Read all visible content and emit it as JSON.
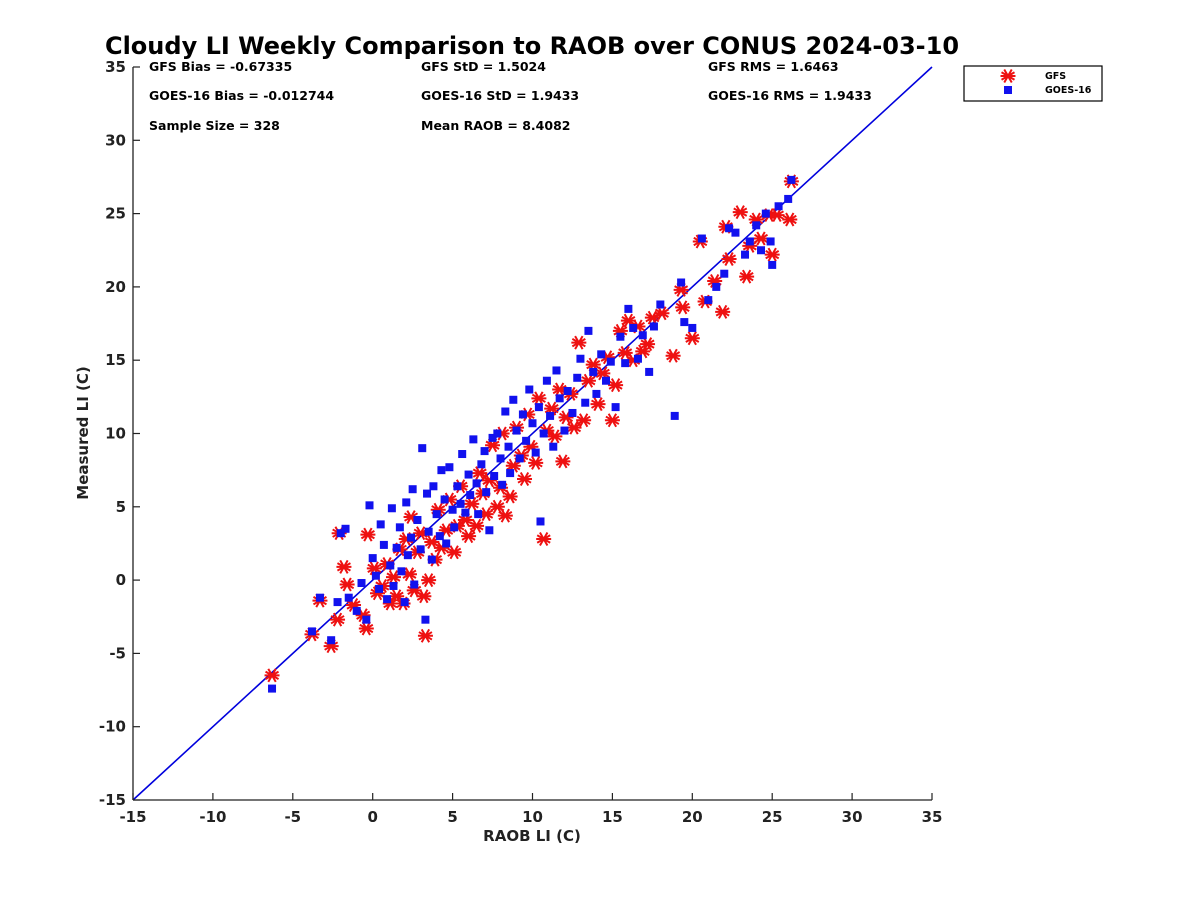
{
  "chart_data": {
    "type": "scatter",
    "title": "Cloudy LI Weekly Comparison to RAOB over CONUS 2024-03-10",
    "xlabel": "RAOB LI (C)",
    "ylabel": "Measured LI (C)",
    "xlim": [
      -15,
      35
    ],
    "ylim": [
      -15,
      35
    ],
    "xticks": [
      -15,
      -10,
      -5,
      0,
      5,
      10,
      15,
      20,
      25,
      30,
      35
    ],
    "yticks": [
      -15,
      -10,
      -5,
      0,
      5,
      10,
      15,
      20,
      25,
      30,
      35
    ],
    "grid": false,
    "legend_position": "top-right, outside",
    "reference_line": {
      "from": [
        -15,
        -15
      ],
      "to": [
        35,
        35
      ],
      "color": "#0000dd"
    },
    "stats": [
      [
        "GFS Bias = -0.67335",
        "GFS StD = 1.5024",
        "GFS RMS = 1.6463"
      ],
      [
        "GOES-16 Bias = -0.012744",
        "GOES-16 StD = 1.9433",
        "GOES-16 RMS = 1.9433"
      ],
      [
        "Sample Size = 328",
        "Mean RAOB = 8.4082",
        ""
      ]
    ],
    "series": [
      {
        "name": "GFS",
        "marker": "asterisk",
        "color": "#ee1111",
        "points": [
          [
            -6.3,
            -6.5
          ],
          [
            -3.8,
            -3.7
          ],
          [
            -3.3,
            -1.4
          ],
          [
            -2.6,
            -4.5
          ],
          [
            -2.2,
            -2.7
          ],
          [
            -2.1,
            3.2
          ],
          [
            -1.8,
            0.9
          ],
          [
            -1.6,
            -0.3
          ],
          [
            -1.2,
            -1.7
          ],
          [
            -0.6,
            -2.4
          ],
          [
            -0.4,
            -3.3
          ],
          [
            -0.3,
            3.1
          ],
          [
            0.1,
            0.8
          ],
          [
            0.3,
            -0.9
          ],
          [
            0.6,
            -0.4
          ],
          [
            0.9,
            1.1
          ],
          [
            1.1,
            -1.6
          ],
          [
            1.3,
            0.2
          ],
          [
            1.5,
            -1.1
          ],
          [
            1.7,
            2.1
          ],
          [
            1.9,
            -1.6
          ],
          [
            2.1,
            2.8
          ],
          [
            2.3,
            0.4
          ],
          [
            2.4,
            4.3
          ],
          [
            2.6,
            -0.7
          ],
          [
            2.8,
            1.9
          ],
          [
            3.0,
            3.2
          ],
          [
            3.2,
            -1.1
          ],
          [
            3.3,
            -3.8
          ],
          [
            3.5,
            0.0
          ],
          [
            3.7,
            2.6
          ],
          [
            3.9,
            1.4
          ],
          [
            4.1,
            4.8
          ],
          [
            4.3,
            2.2
          ],
          [
            4.6,
            3.4
          ],
          [
            4.8,
            5.5
          ],
          [
            5.1,
            1.9
          ],
          [
            5.3,
            3.7
          ],
          [
            5.5,
            6.4
          ],
          [
            5.8,
            4.1
          ],
          [
            6.0,
            3.0
          ],
          [
            6.2,
            5.2
          ],
          [
            6.5,
            3.7
          ],
          [
            6.7,
            7.3
          ],
          [
            6.9,
            5.9
          ],
          [
            7.1,
            4.5
          ],
          [
            7.3,
            6.8
          ],
          [
            7.5,
            9.2
          ],
          [
            7.8,
            5.0
          ],
          [
            8.0,
            6.3
          ],
          [
            8.1,
            10.0
          ],
          [
            8.3,
            4.4
          ],
          [
            8.6,
            5.7
          ],
          [
            8.8,
            7.8
          ],
          [
            9.0,
            10.4
          ],
          [
            9.3,
            8.5
          ],
          [
            9.5,
            6.9
          ],
          [
            9.7,
            11.3
          ],
          [
            9.9,
            9.1
          ],
          [
            10.2,
            8.0
          ],
          [
            10.4,
            12.4
          ],
          [
            10.7,
            2.8
          ],
          [
            10.9,
            10.2
          ],
          [
            11.2,
            11.7
          ],
          [
            11.4,
            9.8
          ],
          [
            11.7,
            13.0
          ],
          [
            11.9,
            8.1
          ],
          [
            12.1,
            11.1
          ],
          [
            12.4,
            12.7
          ],
          [
            12.6,
            10.4
          ],
          [
            12.9,
            16.2
          ],
          [
            13.2,
            10.9
          ],
          [
            13.5,
            13.6
          ],
          [
            13.8,
            14.7
          ],
          [
            14.1,
            12.0
          ],
          [
            14.4,
            14.1
          ],
          [
            14.7,
            15.2
          ],
          [
            15.0,
            10.9
          ],
          [
            15.2,
            13.3
          ],
          [
            15.5,
            17.0
          ],
          [
            15.8,
            15.5
          ],
          [
            16.0,
            17.7
          ],
          [
            16.3,
            15.0
          ],
          [
            16.6,
            17.3
          ],
          [
            16.9,
            15.6
          ],
          [
            17.2,
            16.1
          ],
          [
            17.5,
            17.9
          ],
          [
            18.1,
            18.2
          ],
          [
            18.8,
            15.3
          ],
          [
            19.3,
            19.8
          ],
          [
            19.4,
            18.6
          ],
          [
            20.0,
            16.5
          ],
          [
            20.5,
            23.1
          ],
          [
            20.8,
            19.0
          ],
          [
            21.4,
            20.4
          ],
          [
            21.9,
            18.3
          ],
          [
            22.1,
            24.1
          ],
          [
            22.3,
            21.9
          ],
          [
            23.0,
            25.1
          ],
          [
            23.4,
            20.7
          ],
          [
            23.6,
            22.8
          ],
          [
            24.0,
            24.6
          ],
          [
            24.3,
            23.3
          ],
          [
            24.8,
            24.9
          ],
          [
            25.0,
            22.2
          ],
          [
            25.3,
            24.9
          ],
          [
            26.1,
            24.6
          ],
          [
            26.2,
            27.2
          ]
        ]
      },
      {
        "name": "GOES-16",
        "marker": "square",
        "color": "#1111ee",
        "points": [
          [
            -6.3,
            -7.4
          ],
          [
            -3.8,
            -3.5
          ],
          [
            -3.3,
            -1.2
          ],
          [
            -2.6,
            -4.1
          ],
          [
            -2.2,
            -1.5
          ],
          [
            -2.0,
            3.2
          ],
          [
            -1.7,
            3.5
          ],
          [
            -1.5,
            -1.2
          ],
          [
            -1.0,
            -2.1
          ],
          [
            -0.7,
            -0.2
          ],
          [
            -0.4,
            -2.7
          ],
          [
            -0.2,
            5.1
          ],
          [
            0.0,
            1.5
          ],
          [
            0.2,
            0.3
          ],
          [
            0.4,
            -0.6
          ],
          [
            0.5,
            3.8
          ],
          [
            0.7,
            2.4
          ],
          [
            0.9,
            -1.3
          ],
          [
            1.1,
            1.0
          ],
          [
            1.2,
            4.9
          ],
          [
            1.3,
            -0.4
          ],
          [
            1.5,
            2.2
          ],
          [
            1.7,
            3.6
          ],
          [
            1.8,
            0.6
          ],
          [
            2.0,
            -1.5
          ],
          [
            2.1,
            5.3
          ],
          [
            2.2,
            1.7
          ],
          [
            2.4,
            2.9
          ],
          [
            2.5,
            6.2
          ],
          [
            2.6,
            -0.3
          ],
          [
            2.8,
            4.1
          ],
          [
            3.0,
            2.1
          ],
          [
            3.1,
            9.0
          ],
          [
            3.3,
            -2.7
          ],
          [
            3.4,
            5.9
          ],
          [
            3.5,
            3.3
          ],
          [
            3.7,
            1.4
          ],
          [
            3.8,
            6.4
          ],
          [
            4.0,
            4.5
          ],
          [
            4.2,
            3.0
          ],
          [
            4.3,
            7.5
          ],
          [
            4.5,
            5.5
          ],
          [
            4.6,
            2.5
          ],
          [
            4.8,
            7.7
          ],
          [
            5.0,
            4.8
          ],
          [
            5.1,
            3.6
          ],
          [
            5.3,
            6.4
          ],
          [
            5.5,
            5.2
          ],
          [
            5.6,
            8.6
          ],
          [
            5.8,
            4.6
          ],
          [
            6.0,
            7.2
          ],
          [
            6.1,
            5.8
          ],
          [
            6.3,
            9.6
          ],
          [
            6.5,
            6.6
          ],
          [
            6.6,
            4.5
          ],
          [
            6.8,
            7.9
          ],
          [
            7.0,
            8.8
          ],
          [
            7.1,
            6.0
          ],
          [
            7.3,
            3.4
          ],
          [
            7.5,
            9.7
          ],
          [
            7.6,
            7.1
          ],
          [
            7.8,
            10.0
          ],
          [
            8.0,
            8.3
          ],
          [
            8.1,
            6.5
          ],
          [
            8.3,
            11.5
          ],
          [
            8.5,
            9.1
          ],
          [
            8.6,
            7.3
          ],
          [
            8.8,
            12.3
          ],
          [
            9.0,
            10.2
          ],
          [
            9.2,
            8.3
          ],
          [
            9.4,
            11.3
          ],
          [
            9.6,
            9.5
          ],
          [
            9.8,
            13.0
          ],
          [
            10.0,
            10.7
          ],
          [
            10.2,
            8.7
          ],
          [
            10.4,
            11.8
          ],
          [
            10.5,
            4.0
          ],
          [
            10.7,
            10.0
          ],
          [
            10.9,
            13.6
          ],
          [
            11.1,
            11.2
          ],
          [
            11.3,
            9.1
          ],
          [
            11.5,
            14.3
          ],
          [
            11.7,
            12.4
          ],
          [
            12.0,
            10.2
          ],
          [
            12.2,
            12.9
          ],
          [
            12.5,
            11.4
          ],
          [
            12.8,
            13.8
          ],
          [
            13.0,
            15.1
          ],
          [
            13.3,
            12.1
          ],
          [
            13.5,
            17.0
          ],
          [
            13.8,
            14.2
          ],
          [
            14.0,
            12.7
          ],
          [
            14.3,
            15.4
          ],
          [
            14.6,
            13.6
          ],
          [
            14.9,
            14.9
          ],
          [
            15.2,
            11.8
          ],
          [
            15.5,
            16.6
          ],
          [
            15.8,
            14.8
          ],
          [
            16.0,
            18.5
          ],
          [
            16.3,
            17.2
          ],
          [
            16.6,
            15.1
          ],
          [
            16.9,
            16.7
          ],
          [
            17.3,
            14.2
          ],
          [
            17.6,
            17.3
          ],
          [
            18.0,
            18.8
          ],
          [
            18.9,
            11.2
          ],
          [
            19.3,
            20.3
          ],
          [
            19.5,
            17.6
          ],
          [
            20.0,
            17.2
          ],
          [
            20.6,
            23.3
          ],
          [
            21.0,
            19.1
          ],
          [
            21.5,
            20.0
          ],
          [
            22.0,
            20.9
          ],
          [
            22.3,
            24.0
          ],
          [
            22.7,
            23.7
          ],
          [
            23.3,
            22.2
          ],
          [
            23.6,
            23.1
          ],
          [
            24.0,
            24.2
          ],
          [
            24.3,
            22.5
          ],
          [
            24.6,
            25.0
          ],
          [
            24.9,
            23.1
          ],
          [
            25.0,
            21.5
          ],
          [
            25.4,
            25.5
          ],
          [
            26.0,
            26.0
          ],
          [
            26.2,
            27.3
          ]
        ]
      }
    ]
  }
}
